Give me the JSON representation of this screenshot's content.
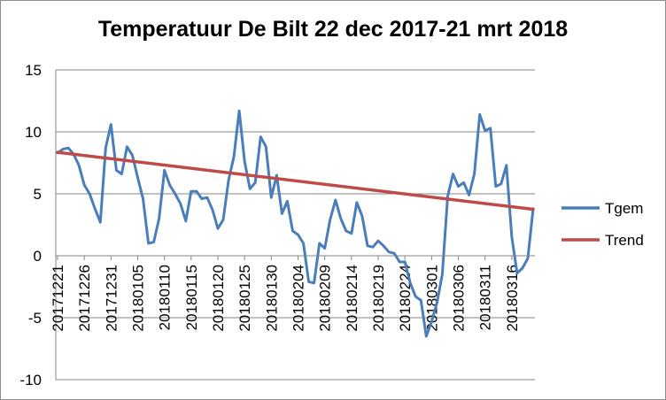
{
  "chart_data": {
    "type": "line",
    "title": "Temperatuur De Bilt 22 dec 2017-21 mrt 2018",
    "xlabel": "",
    "ylabel": "",
    "ylim": [
      -10,
      15
    ],
    "yticks": [
      "15",
      "10",
      "5",
      "0",
      "-5",
      "-10"
    ],
    "x_tick_labels": [
      "20171221",
      "20171226",
      "20171231",
      "20180105",
      "20180110",
      "20180115",
      "20180120",
      "20180125",
      "20180130",
      "20180204",
      "20180209",
      "20180214",
      "20180219",
      "20180224",
      "20180301",
      "20180306",
      "20180311",
      "20180316"
    ],
    "x_tick_every": 5,
    "grid": "horizontal",
    "legend_position": "right",
    "series": [
      {
        "name": "Tgem",
        "color": "#4a7ebb",
        "values": [
          8.3,
          8.6,
          8.7,
          8.2,
          7.3,
          5.7,
          5.0,
          3.8,
          2.7,
          8.7,
          10.6,
          6.9,
          6.6,
          8.8,
          8.1,
          6.3,
          4.6,
          1.0,
          1.1,
          3.0,
          6.9,
          5.7,
          5.0,
          4.2,
          2.8,
          5.2,
          5.2,
          4.6,
          4.7,
          3.7,
          2.2,
          2.9,
          6.1,
          8.0,
          11.7,
          7.6,
          5.4,
          5.9,
          9.6,
          8.8,
          4.7,
          6.5,
          3.4,
          4.4,
          2.0,
          1.7,
          1.0,
          -2.1,
          -2.2,
          1.0,
          0.6,
          2.9,
          4.5,
          3.0,
          2.0,
          1.8,
          4.3,
          3.2,
          0.8,
          0.7,
          1.2,
          0.8,
          0.3,
          0.2,
          -0.5,
          -0.5,
          -2.2,
          -3.3,
          -3.6,
          -6.5,
          -5.3,
          -3.8,
          -1.5,
          4.8,
          6.6,
          5.6,
          5.9,
          4.9,
          6.6,
          11.4,
          10.1,
          10.3,
          5.6,
          5.8,
          7.3,
          1.5,
          -1.4,
          -1.0,
          -0.2,
          3.8
        ]
      },
      {
        "name": "Trend",
        "color": "#be4b48",
        "values": [
          8.35,
          3.75
        ]
      }
    ]
  }
}
